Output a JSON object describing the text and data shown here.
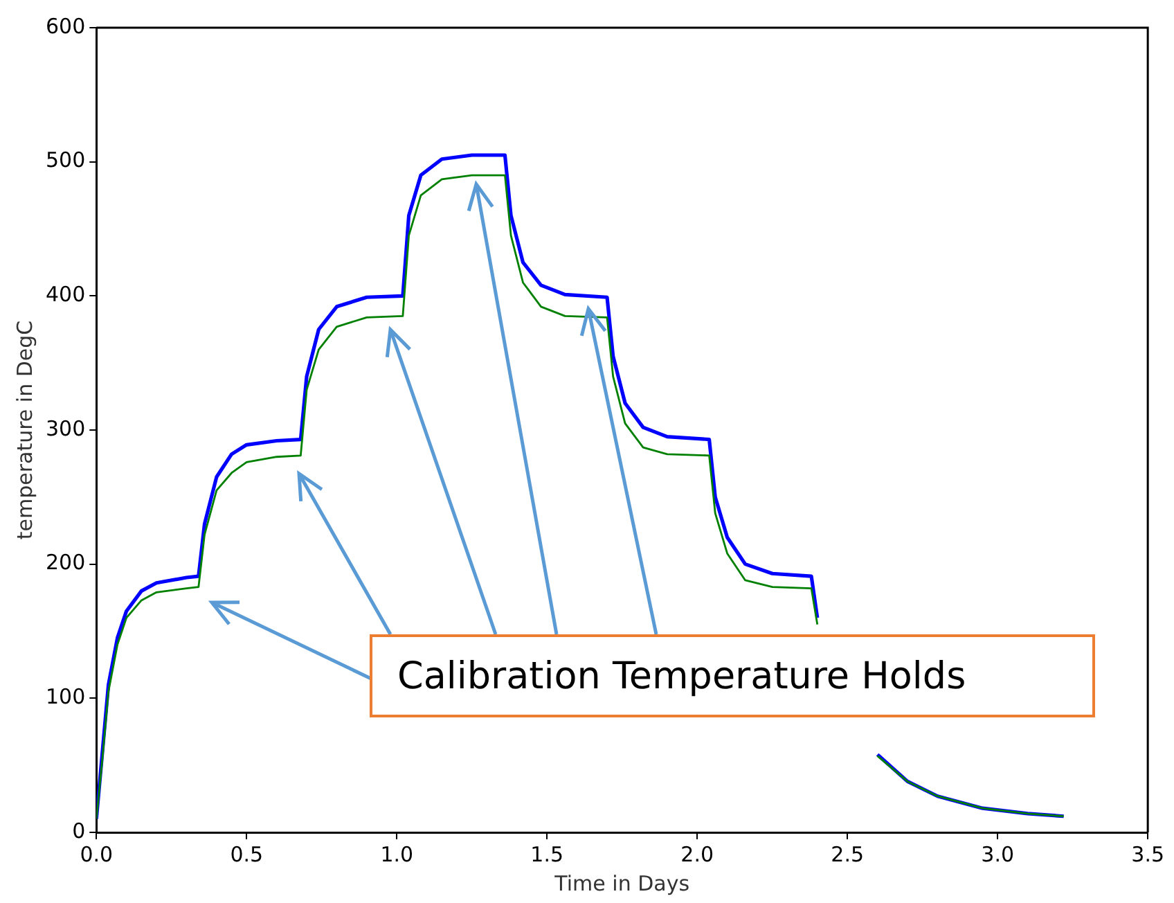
{
  "chart_data": {
    "type": "line",
    "xlabel": "Time in Days",
    "ylabel": "temperature in DegC",
    "x": [
      0,
      0.02,
      0.04,
      0.07,
      0.1,
      0.15,
      0.2,
      0.3,
      0.34,
      0.36,
      0.4,
      0.45,
      0.5,
      0.6,
      0.68,
      0.7,
      0.74,
      0.8,
      0.9,
      1.02,
      1.04,
      1.08,
      1.15,
      1.25,
      1.36,
      1.38,
      1.42,
      1.48,
      1.56,
      1.7,
      1.72,
      1.76,
      1.82,
      1.9,
      2.04,
      2.06,
      2.1,
      2.16,
      2.25,
      2.38,
      2.4,
      2.45,
      2.5,
      2.6,
      2.7,
      2.8,
      2.95,
      3.1,
      3.22
    ],
    "series": [
      {
        "color": "#0000ff",
        "values": [
          10,
          60,
          110,
          145,
          165,
          180,
          186,
          190,
          191,
          230,
          265,
          282,
          289,
          292,
          293,
          340,
          375,
          392,
          399,
          400,
          460,
          490,
          502,
          505,
          505,
          460,
          425,
          408,
          401,
          399,
          355,
          320,
          302,
          295,
          293,
          250,
          220,
          200,
          193,
          191,
          160,
          null,
          null,
          58,
          38,
          27,
          18,
          14,
          12
        ]
      },
      {
        "color": "#008000",
        "values": [
          10,
          55,
          105,
          140,
          160,
          173,
          179,
          182,
          183,
          222,
          255,
          268,
          276,
          280,
          281,
          330,
          360,
          377,
          384,
          385,
          445,
          475,
          487,
          490,
          490,
          445,
          410,
          392,
          385,
          384,
          340,
          305,
          287,
          282,
          281,
          238,
          208,
          188,
          183,
          182,
          155,
          null,
          null,
          57,
          38,
          27,
          18,
          14,
          12
        ]
      }
    ],
    "xlim": [
      0,
      3.5
    ],
    "xticks": [
      {
        "value": 0,
        "label": "0.0"
      },
      {
        "value": 0.5,
        "label": "0.5"
      },
      {
        "value": 1,
        "label": "1.0"
      },
      {
        "value": 1.5,
        "label": "1.5"
      },
      {
        "value": 2,
        "label": "2.0"
      },
      {
        "value": 2.5,
        "label": "2.5"
      },
      {
        "value": 3,
        "label": "3.0"
      },
      {
        "value": 3.5,
        "label": "3.5"
      }
    ],
    "ylim": [
      0,
      600
    ],
    "yticks": [
      0,
      100,
      200,
      300,
      400,
      500,
      600
    ],
    "grid": false,
    "legend": false,
    "marker": "none",
    "line_style": "solid",
    "annotations": [
      "Calibration Temperature Holds"
    ]
  }
}
